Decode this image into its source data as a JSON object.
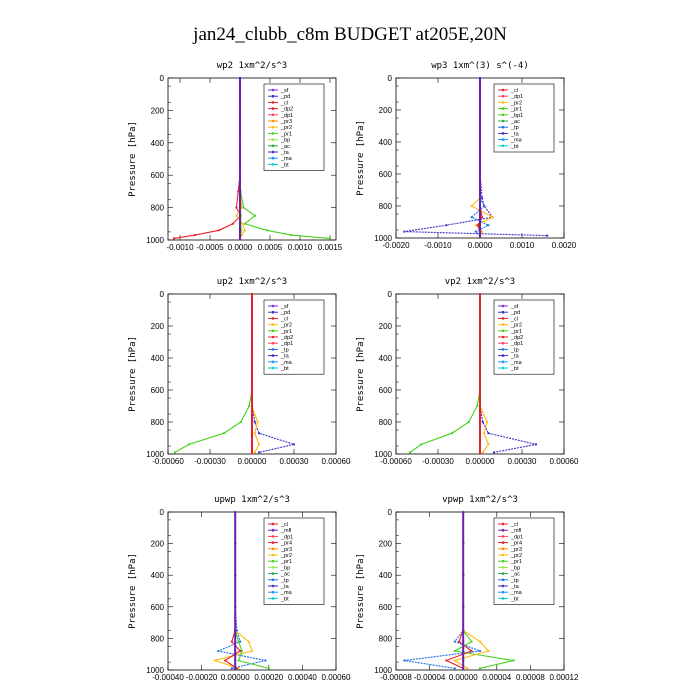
{
  "figure": {
    "title": "jan24_clubb_c8m  BUDGET at205E,20N"
  },
  "chart_data": [
    {
      "type": "line",
      "title": "wp2  1xm^2/s^3",
      "ylabel": "Pressure [hPa]",
      "xlim": [
        -0.0012,
        0.0016
      ],
      "ylim": [
        1000,
        0
      ],
      "yticks": [
        "0",
        "200",
        "400",
        "600",
        "800",
        "1000"
      ],
      "xticks": [
        "-0.0010",
        "-0.0005",
        "0.0000",
        "0.0005",
        "0.0010",
        "0.0015"
      ],
      "xtick_values": [
        -0.001,
        -0.0005,
        0,
        0.0005,
        0.001,
        0.0015
      ],
      "xtick_labels": [
        "-0.0010",
        "-0.0005",
        "0.0000",
        "0.0005",
        "0.0010",
        "0.0015"
      ],
      "legend": [
        "_sf",
        "_pd",
        "_cl",
        "_dp2",
        "_dp1",
        "_pr3",
        "_pr2",
        "_pr1",
        "_bp",
        "_ac",
        "_ta",
        "_ma",
        "_bt"
      ],
      "series": [
        {
          "name": "_dp2",
          "color": "#e8202a",
          "x": [
            0,
            0,
            0,
            0,
            -3e-05,
            -6e-05,
            1e-05,
            -0.00012,
            -0.00035,
            -0.00075,
            -0.0011
          ],
          "y": [
            0,
            200,
            400,
            600,
            700,
            800,
            850,
            900,
            940,
            970,
            990
          ]
        },
        {
          "name": "_pr1",
          "color": "#46d11d",
          "x": [
            0,
            0,
            0,
            0,
            1e-05,
            6e-05,
            0.00025,
            8e-05,
            0.00045,
            0.00085,
            0.0015
          ],
          "y": [
            0,
            200,
            400,
            600,
            700,
            800,
            850,
            900,
            940,
            970,
            990
          ]
        },
        {
          "name": "_pr2",
          "color": "#ffb90f",
          "x": [
            0,
            0,
            0,
            0,
            0,
            3e-05,
            -6e-05,
            4e-05,
            8e-05,
            3e-05,
            0
          ],
          "y": [
            0,
            200,
            400,
            600,
            700,
            800,
            850,
            900,
            940,
            970,
            990
          ]
        },
        {
          "name": "_bp",
          "color": "#8fe84d",
          "x": [
            0,
            0,
            0,
            0,
            0,
            0,
            2e-05,
            1e-05,
            3e-05,
            1e-05,
            0
          ],
          "y": [
            0,
            200,
            400,
            600,
            700,
            800,
            850,
            900,
            940,
            970,
            990
          ]
        },
        {
          "name": "_sf",
          "color": "#8a2be2",
          "x": [
            0,
            0,
            0,
            0,
            0,
            0,
            0,
            0,
            0,
            0,
            0
          ],
          "y": [
            0,
            200,
            400,
            600,
            700,
            800,
            850,
            900,
            940,
            970,
            990
          ]
        },
        {
          "name": "_bt",
          "color": "#3a2fc9",
          "x": [
            0,
            0,
            0,
            0,
            0,
            0,
            0,
            0,
            0,
            0,
            0
          ],
          "y": [
            0,
            200,
            400,
            600,
            700,
            800,
            850,
            900,
            940,
            970,
            990
          ]
        }
      ]
    },
    {
      "type": "line",
      "title": "wp3  1xm^(3) s^(-4)",
      "ylabel": "Pressure [hPa]",
      "xlim": [
        -0.002,
        0.002
      ],
      "ylim": [
        1000,
        0
      ],
      "yticks": [
        "0",
        "200",
        "400",
        "600",
        "800",
        "1000"
      ],
      "xticks": [
        "-0.0020",
        "-0.0010",
        "0.0000",
        "0.0010",
        "0.0020"
      ],
      "xtick_values": [
        -0.002,
        -0.001,
        0,
        0.001,
        0.002
      ],
      "xtick_labels": [
        "-0.0020",
        "-0.0010",
        "0.0000",
        "0.0010",
        "0.0020"
      ],
      "legend": [
        "_cl",
        "_dp1",
        "_pr2",
        "_pr1",
        "_bp1",
        "_ac",
        "_tp",
        "_ta",
        "_ma",
        "_bt"
      ],
      "series": [
        {
          "name": "_ta",
          "color": "#3a2fc9",
          "x": [
            0,
            0,
            0,
            0,
            5e-05,
            0.0001,
            0.0003,
            -0.0008,
            -0.0018,
            0.0016
          ],
          "y": [
            0,
            200,
            400,
            600,
            750,
            800,
            870,
            920,
            960,
            985
          ]
        },
        {
          "name": "_pr1",
          "color": "#ffb90f",
          "x": [
            0,
            0,
            0,
            0,
            0,
            -0.0002,
            0.0003,
            -0.0001,
            5e-05,
            0
          ],
          "y": [
            0,
            200,
            400,
            600,
            750,
            800,
            870,
            920,
            960,
            985
          ]
        },
        {
          "name": "_tp",
          "color": "#1e6ee8",
          "x": [
            0,
            0,
            0,
            0,
            0,
            0.0001,
            -0.0002,
            0.0002,
            -0.0001,
            0
          ],
          "y": [
            0,
            200,
            400,
            600,
            750,
            800,
            870,
            920,
            960,
            985
          ]
        },
        {
          "name": "_dp1",
          "color": "#e8202a",
          "x": [
            0,
            0,
            0,
            0,
            0,
            0,
            5e-05,
            -5e-05,
            0,
            0
          ],
          "y": [
            0,
            200,
            400,
            600,
            750,
            800,
            870,
            920,
            960,
            985
          ]
        },
        {
          "name": "_cl",
          "color": "#8a2be2",
          "x": [
            0,
            0,
            0,
            0,
            0,
            0,
            0,
            0,
            0,
            0
          ],
          "y": [
            0,
            200,
            400,
            600,
            750,
            800,
            870,
            920,
            960,
            985
          ]
        }
      ]
    },
    {
      "type": "line",
      "title": "up2  1xm^2/s^3",
      "ylabel": "Pressure [hPa]",
      "xlim": [
        -0.0006,
        0.0006
      ],
      "ylim": [
        1000,
        0
      ],
      "yticks": [
        "0",
        "200",
        "400",
        "600",
        "800",
        "1000"
      ],
      "xticks": [
        "-0.00060",
        "-0.00030",
        "0.00000",
        "0.00030",
        "0.00060"
      ],
      "xtick_values": [
        -0.0006,
        -0.0003,
        0,
        0.0003,
        0.0006
      ],
      "xtick_labels": [
        "-0.00060",
        "-0.00030",
        "0.00000",
        "0.00030",
        "0.00060"
      ],
      "legend": [
        "_sf",
        "_pd",
        "_cl",
        "_pr2",
        "_pr1",
        "_dp2",
        "_dp1",
        "_tp",
        "_ta",
        "_ma",
        "_bt"
      ],
      "series": [
        {
          "name": "_dp2",
          "color": "#46d11d",
          "x": [
            0,
            0,
            0,
            0,
            -2e-05,
            -8e-05,
            -0.0002,
            -0.00045,
            -0.00055
          ],
          "y": [
            0,
            200,
            400,
            600,
            700,
            800,
            870,
            940,
            990
          ]
        },
        {
          "name": "_ta",
          "color": "#3a2fc9",
          "x": [
            0,
            0,
            0,
            0,
            0,
            2e-05,
            5e-05,
            0.0003,
            5e-05
          ],
          "y": [
            0,
            200,
            400,
            600,
            700,
            800,
            870,
            940,
            990
          ]
        },
        {
          "name": "_pr2",
          "color": "#ffb90f",
          "x": [
            0,
            0,
            0,
            0,
            0,
            4e-05,
            2e-05,
            5e-05,
            2e-05
          ],
          "y": [
            0,
            200,
            400,
            600,
            700,
            800,
            870,
            940,
            990
          ]
        },
        {
          "name": "_sf",
          "color": "#e8202a",
          "x": [
            0,
            0,
            0,
            0,
            0,
            0,
            0,
            0,
            0
          ],
          "y": [
            0,
            200,
            400,
            600,
            700,
            800,
            870,
            940,
            990
          ]
        }
      ]
    },
    {
      "type": "line",
      "title": "vp2  1xm^2/s^3",
      "ylabel": "Pressure [hPa]",
      "xlim": [
        -0.0006,
        0.0006
      ],
      "ylim": [
        1000,
        0
      ],
      "yticks": [
        "0",
        "200",
        "400",
        "600",
        "800",
        "1000"
      ],
      "xticks": [
        "-0.00060",
        "-0.00030",
        "0.00000",
        "0.00030",
        "0.00060"
      ],
      "xtick_values": [
        -0.0006,
        -0.0003,
        0,
        0.0003,
        0.0006
      ],
      "xtick_labels": [
        "-0.00060",
        "-0.00030",
        "0.00000",
        "0.00030",
        "0.00060"
      ],
      "legend": [
        "_sf",
        "_pd",
        "_cl",
        "_pr2",
        "_pr1",
        "_dp2",
        "_dp1",
        "_tp",
        "_ta",
        "_ma",
        "_bt"
      ],
      "series": [
        {
          "name": "_dp2",
          "color": "#46d11d",
          "x": [
            0,
            0,
            0,
            0,
            -2e-05,
            -8e-05,
            -0.0002,
            -0.00042,
            -0.0005
          ],
          "y": [
            0,
            200,
            400,
            600,
            700,
            800,
            870,
            940,
            990
          ]
        },
        {
          "name": "_ta",
          "color": "#3a2fc9",
          "x": [
            0,
            0,
            0,
            0,
            0,
            2e-05,
            6e-05,
            0.0004,
            0.0001
          ],
          "y": [
            0,
            200,
            400,
            600,
            700,
            800,
            870,
            940,
            990
          ]
        },
        {
          "name": "_pr2",
          "color": "#ffb90f",
          "x": [
            0,
            0,
            0,
            0,
            0,
            5e-05,
            3e-05,
            6e-05,
            2e-05
          ],
          "y": [
            0,
            200,
            400,
            600,
            700,
            800,
            870,
            940,
            990
          ]
        },
        {
          "name": "_sf",
          "color": "#e8202a",
          "x": [
            0,
            0,
            0,
            0,
            0,
            0,
            0,
            0,
            0
          ],
          "y": [
            0,
            200,
            400,
            600,
            700,
            800,
            870,
            940,
            990
          ]
        }
      ]
    },
    {
      "type": "line",
      "title": "upwp  1xm^2/s^3",
      "ylabel": "Pressure [hPa]",
      "xlim": [
        -0.0004,
        0.0006
      ],
      "ylim": [
        1000,
        0
      ],
      "yticks": [
        "0",
        "200",
        "400",
        "600",
        "800",
        "1000"
      ],
      "xticks": [
        "-0.00040",
        "-0.00020",
        "0.00000",
        "0.00020",
        "0.00040",
        "0.00060"
      ],
      "xtick_values": [
        -0.0004,
        -0.0002,
        0,
        0.0002,
        0.0004,
        0.0006
      ],
      "xtick_labels": [
        "-0.00040",
        "-0.00020",
        "0.00000",
        "0.00020",
        "0.00040",
        "0.00060"
      ],
      "legend": [
        "_cl",
        "_mfl",
        "_dp1",
        "_pr4",
        "_pr3",
        "_pr2",
        "_pr1",
        "_bp",
        "_ac",
        "_tp",
        "_ta",
        "_ma",
        "_bt"
      ],
      "series": [
        {
          "name": "_ta",
          "color": "#1e6ee8",
          "x": [
            0,
            0,
            0,
            0,
            1e-05,
            3e-05,
            -0.0001,
            0.00018,
            -2e-05
          ],
          "y": [
            0,
            200,
            400,
            600,
            750,
            820,
            880,
            940,
            990
          ]
        },
        {
          "name": "_pr2",
          "color": "#ffb90f",
          "x": [
            0,
            0,
            0,
            0,
            0,
            8e-05,
            0.0001,
            -0.00012,
            2e-05
          ],
          "y": [
            0,
            200,
            400,
            600,
            750,
            820,
            880,
            940,
            990
          ]
        },
        {
          "name": "_bp",
          "color": "#46d11d",
          "x": [
            0,
            0,
            0,
            0,
            0,
            2e-05,
            4e-05,
            2e-05,
            0.0002
          ],
          "y": [
            0,
            200,
            400,
            600,
            750,
            820,
            880,
            940,
            990
          ]
        },
        {
          "name": "_dp1",
          "color": "#e8202a",
          "x": [
            0,
            0,
            0,
            0,
            0,
            -2e-05,
            3e-05,
            -6e-05,
            1e-05
          ],
          "y": [
            0,
            200,
            400,
            600,
            750,
            820,
            880,
            940,
            990
          ]
        },
        {
          "name": "_cl",
          "color": "#8a2be2",
          "x": [
            0,
            0,
            0,
            0,
            0,
            0,
            0,
            0,
            0
          ],
          "y": [
            0,
            200,
            400,
            600,
            750,
            820,
            880,
            940,
            990
          ]
        }
      ]
    },
    {
      "type": "line",
      "title": "vpwp  1xm^2/s^3",
      "ylabel": "Pressure [hPa]",
      "xlim": [
        -8e-05,
        0.00012
      ],
      "ylim": [
        1000,
        0
      ],
      "yticks": [
        "0",
        "200",
        "400",
        "600",
        "800",
        "1000"
      ],
      "xticks": [
        "-0.00008",
        "-0.00004",
        "0.00000",
        "0.00004",
        "0.00008",
        "0.00012"
      ],
      "xtick_values": [
        -8e-05,
        -4e-05,
        0,
        4e-05,
        8e-05,
        0.00012
      ],
      "xtick_labels": [
        "-0.00008",
        "-0.00004",
        "0.00000",
        "0.00004",
        "0.00008",
        "0.00012"
      ],
      "legend": [
        "_cl",
        "_mfl",
        "_dp1",
        "_pr4",
        "_pr3",
        "_pr2",
        "_pr1",
        "_bp",
        "_ac",
        "_tp",
        "_ta",
        "_ma",
        "_bt"
      ],
      "series": [
        {
          "name": "_ta",
          "color": "#1e6ee8",
          "x": [
            0,
            0,
            0,
            0,
            0,
            -1e-05,
            2e-05,
            -7e-05,
            -1e-05
          ],
          "y": [
            0,
            200,
            400,
            600,
            750,
            820,
            880,
            940,
            990
          ]
        },
        {
          "name": "_bp",
          "color": "#46d11d",
          "x": [
            0,
            0,
            0,
            0,
            0,
            1e-05,
            -1e-05,
            6e-05,
            2e-05
          ],
          "y": [
            0,
            200,
            400,
            600,
            750,
            820,
            880,
            940,
            990
          ]
        },
        {
          "name": "_pr2",
          "color": "#ffb90f",
          "x": [
            0,
            0,
            0,
            0,
            0,
            2e-05,
            3e-05,
            -1e-05,
            5e-06
          ],
          "y": [
            0,
            200,
            400,
            600,
            750,
            820,
            880,
            940,
            990
          ]
        },
        {
          "name": "_dp1",
          "color": "#e8202a",
          "x": [
            0,
            0,
            0,
            0,
            0,
            -5e-06,
            1e-05,
            -2e-05,
            0
          ],
          "y": [
            0,
            200,
            400,
            600,
            750,
            820,
            880,
            940,
            990
          ]
        },
        {
          "name": "_cl",
          "color": "#8a2be2",
          "x": [
            0,
            0,
            0,
            0,
            0,
            0,
            0,
            0,
            0
          ],
          "y": [
            0,
            200,
            400,
            600,
            750,
            820,
            880,
            940,
            990
          ]
        }
      ]
    }
  ]
}
